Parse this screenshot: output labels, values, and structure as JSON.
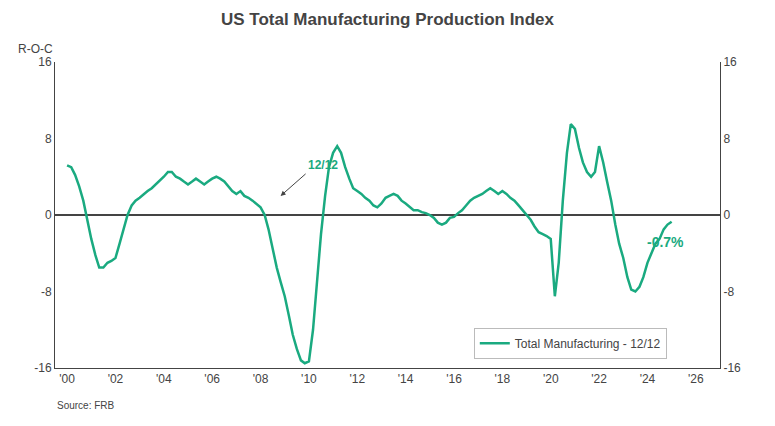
{
  "chart_data": {
    "type": "line",
    "title": "US Total Manufacturing Production Index",
    "y_label": "R-O-C",
    "source": "Source: FRB",
    "x": [
      2000.0,
      2000.17,
      2000.33,
      2000.5,
      2000.67,
      2000.83,
      2001.0,
      2001.17,
      2001.33,
      2001.5,
      2001.67,
      2001.83,
      2002.0,
      2002.17,
      2002.33,
      2002.5,
      2002.67,
      2002.83,
      2003.0,
      2003.17,
      2003.33,
      2003.5,
      2003.67,
      2003.83,
      2004.0,
      2004.17,
      2004.33,
      2004.5,
      2004.67,
      2004.83,
      2005.0,
      2005.17,
      2005.33,
      2005.5,
      2005.67,
      2005.83,
      2006.0,
      2006.17,
      2006.33,
      2006.5,
      2006.67,
      2006.83,
      2007.0,
      2007.17,
      2007.33,
      2007.5,
      2007.67,
      2007.83,
      2008.0,
      2008.17,
      2008.33,
      2008.5,
      2008.67,
      2008.83,
      2009.0,
      2009.17,
      2009.33,
      2009.5,
      2009.67,
      2009.83,
      2010.0,
      2010.17,
      2010.33,
      2010.5,
      2010.67,
      2010.83,
      2011.0,
      2011.17,
      2011.33,
      2011.5,
      2011.67,
      2011.83,
      2012.0,
      2012.17,
      2012.33,
      2012.5,
      2012.67,
      2012.83,
      2013.0,
      2013.17,
      2013.33,
      2013.5,
      2013.67,
      2013.83,
      2014.0,
      2014.17,
      2014.33,
      2014.5,
      2014.67,
      2014.83,
      2015.0,
      2015.17,
      2015.33,
      2015.5,
      2015.67,
      2015.83,
      2016.0,
      2016.17,
      2016.33,
      2016.5,
      2016.67,
      2016.83,
      2017.0,
      2017.17,
      2017.33,
      2017.5,
      2017.67,
      2017.83,
      2018.0,
      2018.17,
      2018.33,
      2018.5,
      2018.67,
      2018.83,
      2019.0,
      2019.17,
      2019.33,
      2019.5,
      2019.67,
      2019.83,
      2020.0,
      2020.17,
      2020.33,
      2020.5,
      2020.67,
      2020.83,
      2021.0,
      2021.17,
      2021.33,
      2021.5,
      2021.67,
      2021.83,
      2022.0,
      2022.17,
      2022.33,
      2022.5,
      2022.67,
      2022.83,
      2023.0,
      2023.17,
      2023.33,
      2023.5,
      2023.67,
      2023.83,
      2024.0,
      2024.17,
      2024.33,
      2024.5,
      2024.67,
      2024.83,
      2025.0
    ],
    "series": [
      {
        "name": "Total Manufacturing - 12/12",
        "color": "#1aaa80",
        "values": [
          5.2,
          5.0,
          4.2,
          3.0,
          1.5,
          -0.5,
          -2.5,
          -4.2,
          -5.5,
          -5.5,
          -5.0,
          -4.8,
          -4.5,
          -3.0,
          -1.5,
          0.0,
          1.0,
          1.5,
          1.8,
          2.2,
          2.5,
          2.8,
          3.2,
          3.5,
          4.0,
          4.5,
          4.5,
          4.0,
          3.8,
          3.5,
          3.2,
          3.5,
          3.8,
          3.5,
          3.2,
          3.5,
          3.8,
          4.0,
          3.8,
          3.5,
          3.0,
          2.5,
          2.2,
          2.5,
          2.0,
          1.8,
          1.5,
          1.2,
          0.8,
          0.0,
          -1.5,
          -3.5,
          -5.5,
          -7.0,
          -8.5,
          -10.5,
          -12.5,
          -14.0,
          -15.2,
          -15.5,
          -15.3,
          -12.0,
          -7.0,
          -2.0,
          2.0,
          5.0,
          6.5,
          7.2,
          6.5,
          5.0,
          3.8,
          2.8,
          2.5,
          2.2,
          1.8,
          1.5,
          1.0,
          0.8,
          1.2,
          1.8,
          2.0,
          2.2,
          2.0,
          1.5,
          1.2,
          0.8,
          0.5,
          0.5,
          0.3,
          0.2,
          0.0,
          -0.3,
          -0.8,
          -1.0,
          -0.8,
          -0.3,
          -0.2,
          0.2,
          0.5,
          1.0,
          1.5,
          1.8,
          2.0,
          2.2,
          2.5,
          2.8,
          2.5,
          2.2,
          2.5,
          2.2,
          1.8,
          1.5,
          1.0,
          0.5,
          0.0,
          -0.5,
          -1.2,
          -1.8,
          -2.0,
          -2.2,
          -2.5,
          -8.5,
          -5.0,
          1.5,
          6.5,
          9.5,
          9.0,
          7.0,
          5.5,
          4.5,
          4.0,
          4.5,
          7.2,
          5.5,
          3.5,
          1.5,
          -1.0,
          -3.0,
          -4.5,
          -6.5,
          -7.8,
          -8.0,
          -7.5,
          -6.5,
          -5.0,
          -4.0,
          -3.0,
          -2.5,
          -1.5,
          -1.0,
          -0.7
        ]
      }
    ],
    "xlim": [
      1999.5,
      2027.0
    ],
    "xticks": [
      {
        "value": 2000,
        "label": "'00"
      },
      {
        "value": 2002,
        "label": "'02"
      },
      {
        "value": 2004,
        "label": "'04"
      },
      {
        "value": 2006,
        "label": "'06"
      },
      {
        "value": 2008,
        "label": "'08"
      },
      {
        "value": 2010,
        "label": "'10"
      },
      {
        "value": 2012,
        "label": "'12"
      },
      {
        "value": 2014,
        "label": "'14"
      },
      {
        "value": 2016,
        "label": "'16"
      },
      {
        "value": 2018,
        "label": "'18"
      },
      {
        "value": 2020,
        "label": "'20"
      },
      {
        "value": 2022,
        "label": "'22"
      },
      {
        "value": 2024,
        "label": "'24"
      },
      {
        "value": 2026,
        "label": "'26"
      }
    ],
    "ylim": [
      -16,
      16
    ],
    "yticks": [
      -16,
      -8,
      0,
      8,
      16
    ],
    "y2lim": [
      -16,
      16
    ],
    "y2ticks": [
      -16,
      -8,
      0,
      8,
      16
    ],
    "annotations": [
      {
        "text": "12/12",
        "x": 2008.83,
        "y": 2.0
      }
    ],
    "end_label": {
      "text": "-0.7%",
      "x": 2025.0,
      "y": -0.7
    },
    "grid": false,
    "legend": "lower right"
  }
}
